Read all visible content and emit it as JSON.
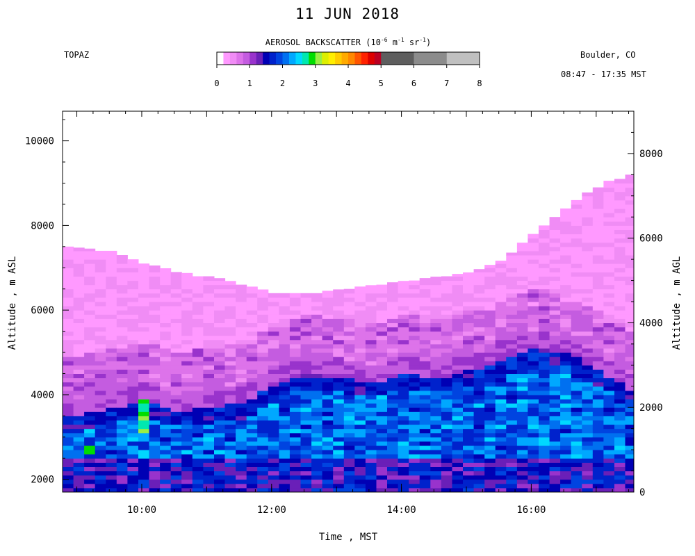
{
  "page": {
    "title": "11 JUN 2018",
    "station": "TOPAZ",
    "location": "Boulder, CO",
    "time_range": "08:47 - 17:35 MST"
  },
  "colorbar": {
    "title_prefix": "AEROSOL BACKSCATTER (10",
    "title_exp1": "-6",
    "title_unit1": " m",
    "title_exp2": "-1",
    "title_unit2": " sr",
    "title_exp3": "-1",
    "title_suffix": ")",
    "tick_labels": [
      "0",
      "1",
      "2",
      "3",
      "4",
      "5",
      "6",
      "7",
      "8"
    ],
    "range": [
      0,
      8
    ],
    "bins": [
      {
        "from": 0.0,
        "to": 0.2,
        "color": "#ffffff"
      },
      {
        "from": 0.2,
        "to": 0.4,
        "color": "#ff99ff"
      },
      {
        "from": 0.4,
        "to": 0.6,
        "color": "#f08cf5"
      },
      {
        "from": 0.6,
        "to": 0.8,
        "color": "#dd73ea"
      },
      {
        "from": 0.8,
        "to": 1.0,
        "color": "#c45ce0"
      },
      {
        "from": 1.0,
        "to": 1.2,
        "color": "#9933cc"
      },
      {
        "from": 1.2,
        "to": 1.4,
        "color": "#6a1fb8"
      },
      {
        "from": 1.4,
        "to": 1.6,
        "color": "#0000b4"
      },
      {
        "from": 1.6,
        "to": 1.8,
        "color": "#0022cc"
      },
      {
        "from": 1.8,
        "to": 2.0,
        "color": "#0044e0"
      },
      {
        "from": 2.0,
        "to": 2.2,
        "color": "#0070f0"
      },
      {
        "from": 2.2,
        "to": 2.4,
        "color": "#00a8ff"
      },
      {
        "from": 2.4,
        "to": 2.6,
        "color": "#00d8ff"
      },
      {
        "from": 2.6,
        "to": 2.8,
        "color": "#00e8b0"
      },
      {
        "from": 2.8,
        "to": 3.0,
        "color": "#00dd00"
      },
      {
        "from": 3.0,
        "to": 3.2,
        "color": "#99ee44"
      },
      {
        "from": 3.2,
        "to": 3.4,
        "color": "#ddee00"
      },
      {
        "from": 3.4,
        "to": 3.6,
        "color": "#ffee00"
      },
      {
        "from": 3.6,
        "to": 3.8,
        "color": "#ffcc00"
      },
      {
        "from": 3.8,
        "to": 4.0,
        "color": "#ffaa00"
      },
      {
        "from": 4.0,
        "to": 4.2,
        "color": "#ff8800"
      },
      {
        "from": 4.2,
        "to": 4.4,
        "color": "#ff5500"
      },
      {
        "from": 4.4,
        "to": 4.6,
        "color": "#ff2200"
      },
      {
        "from": 4.6,
        "to": 4.8,
        "color": "#dd0000"
      },
      {
        "from": 4.8,
        "to": 5.0,
        "color": "#bb0022"
      },
      {
        "from": 5.0,
        "to": 6.0,
        "color": "#5e5e5e"
      },
      {
        "from": 6.0,
        "to": 7.0,
        "color": "#8c8c8c"
      },
      {
        "from": 7.0,
        "to": 8.0,
        "color": "#c0c0c0"
      }
    ]
  },
  "chart_data": {
    "type": "heatmap",
    "title": "11 JUN 2018",
    "xlabel": "Time , MST",
    "ylabel": "Altitude , m ASL",
    "y2label": "Altitude , m AGL",
    "x_range_hours": [
      8.78,
      17.58
    ],
    "data_time_range_hours": [
      8.78,
      17.58
    ],
    "ylim": [
      1700,
      10700
    ],
    "y2lim": [
      0,
      9000
    ],
    "x_ticks": [
      {
        "value": 10,
        "label": "10:00"
      },
      {
        "value": 12,
        "label": "12:00"
      },
      {
        "value": 14,
        "label": "14:00"
      },
      {
        "value": 16,
        "label": "16:00"
      }
    ],
    "y_ticks": [
      {
        "value": 2000,
        "label": "2000"
      },
      {
        "value": 4000,
        "label": "4000"
      },
      {
        "value": 6000,
        "label": "6000"
      },
      {
        "value": 8000,
        "label": "8000"
      },
      {
        "value": 10000,
        "label": "10000"
      }
    ],
    "y2_ticks": [
      {
        "value": 0,
        "label": "0"
      },
      {
        "value": 2000,
        "label": "2000"
      },
      {
        "value": 4000,
        "label": "4000"
      },
      {
        "value": 6000,
        "label": "6000"
      },
      {
        "value": 8000,
        "label": "8000"
      }
    ],
    "value_units": "10^-6 m^-1 sr^-1",
    "data_floor_m_asl": 1700,
    "profile_interval_min": 10,
    "layer_top_m_asl": {
      "hours": [
        8.78,
        9.5,
        10.0,
        10.5,
        11.0,
        11.5,
        12.0,
        12.5,
        13.0,
        13.5,
        14.0,
        14.5,
        15.0,
        15.5,
        16.0,
        16.5,
        17.0,
        17.4
      ],
      "values": [
        7500,
        7400,
        7100,
        6900,
        6800,
        6600,
        6400,
        6400,
        6500,
        6600,
        6700,
        6800,
        6900,
        7200,
        7900,
        8500,
        9000,
        9200
      ]
    },
    "mixed_layer_top_m_asl": {
      "hours": [
        8.78,
        9.5,
        10.0,
        10.5,
        11.0,
        11.5,
        12.0,
        12.5,
        13.0,
        13.5,
        14.0,
        14.5,
        15.0,
        15.5,
        16.0,
        16.5,
        17.0,
        17.5
      ],
      "values": [
        3500,
        3700,
        3800,
        3600,
        3700,
        3800,
        4300,
        4500,
        4400,
        4300,
        4500,
        4400,
        4600,
        4800,
        5100,
        5000,
        4500,
        4100
      ]
    },
    "aerosol_backscatter_summary": {
      "free_troposphere_layer": 0.4,
      "upper_purple_band": 1.0,
      "residual_layer_blue": 1.9,
      "mixed_layer_core": 2.3,
      "surface_layer": 1.5,
      "peak_near_10_00": 3.2,
      "peak_near_09_10": 2.9
    }
  }
}
